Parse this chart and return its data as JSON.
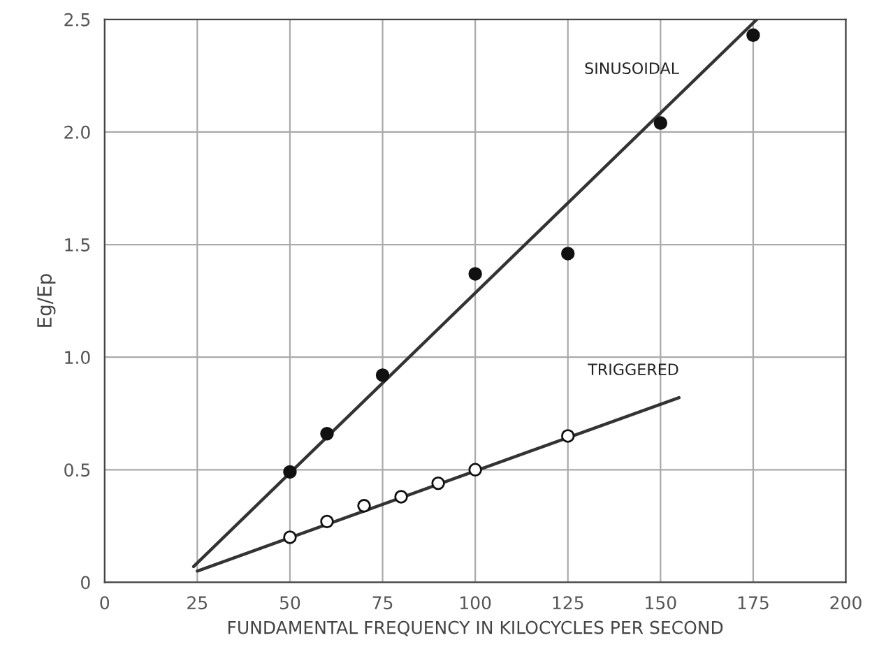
{
  "chart_data": {
    "type": "scatter",
    "xlabel": "FUNDAMENTAL FREQUENCY IN KILOCYCLES PER SECOND",
    "ylabel": "Eg/Ep",
    "xlim": [
      0,
      200
    ],
    "ylim": [
      0,
      2.5
    ],
    "xticks": [
      0,
      25,
      50,
      75,
      100,
      125,
      150,
      175,
      200
    ],
    "yticks": [
      0,
      0.5,
      {
        "value": 1,
        "label": "1.0"
      },
      1.5,
      {
        "value": 2,
        "label": "2.0"
      },
      2.5
    ],
    "grid": true,
    "series": [
      {
        "marker": "circle",
        "color": "#111111",
        "x": [
          50,
          60,
          75,
          100,
          125,
          150,
          175
        ],
        "values": [
          0.49,
          0.66,
          0.92,
          1.37,
          1.46,
          2.04,
          2.43
        ]
      },
      {
        "marker": "circle",
        "color": "#ffffff",
        "x": [
          50,
          60,
          70,
          80,
          90,
          100,
          125
        ],
        "values": [
          0.2,
          0.27,
          0.34,
          0.38,
          0.44,
          0.5,
          0.65
        ]
      },
      {
        "type": "line",
        "name": "SINUSOIDAL",
        "color": "#333333",
        "x": [
          24,
          176
        ],
        "values": [
          0.07,
          2.5
        ],
        "line_style": "solid",
        "marker": "none"
      },
      {
        "type": "line",
        "name": "TRIGGERED",
        "color": "#333333",
        "x": [
          25,
          155
        ],
        "values": [
          0.05,
          0.82
        ],
        "line_style": "solid",
        "marker": "none"
      }
    ]
  }
}
